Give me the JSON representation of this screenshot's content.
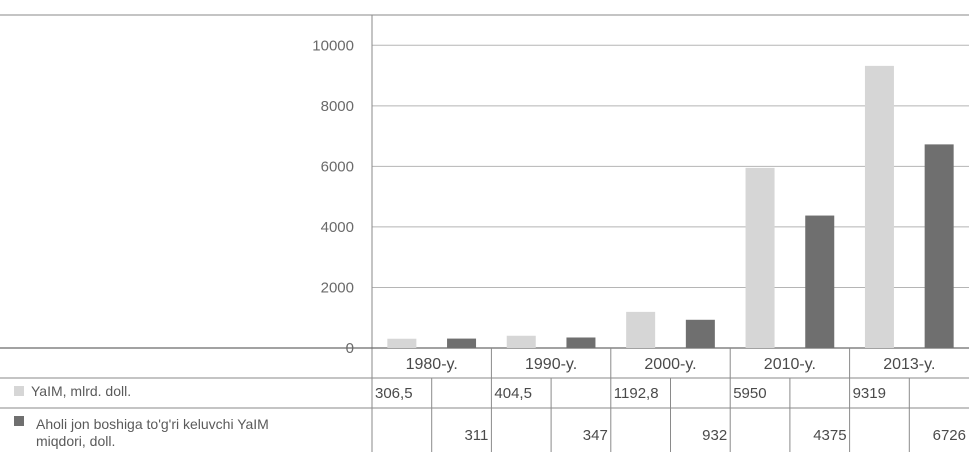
{
  "chart_data": {
    "type": "bar",
    "categories": [
      "1980-y.",
      "1990-y.",
      "2000-y.",
      "2010-y.",
      "2013-y."
    ],
    "series": [
      {
        "name": "YaIM, mlrd. doll.",
        "values": [
          306.5,
          404.5,
          1192.8,
          5950,
          9319
        ],
        "labels": [
          "306,5",
          "404,5",
          "1192,8",
          "5950",
          "9319"
        ],
        "color": "#d6d6d6"
      },
      {
        "name": "Aholi jon boshiga to'g'ri keluvchi YaIM miqdori, doll.",
        "name_lines": [
          "Aholi jon boshiga to'g'ri keluvchi YaIM",
          "miqdori, doll."
        ],
        "values": [
          311,
          347,
          932,
          4375,
          6726
        ],
        "labels": [
          "311",
          "347",
          "932",
          "4375",
          "6726"
        ],
        "color": "#6f6f6f"
      }
    ],
    "y_ticks": [
      0,
      2000,
      4000,
      6000,
      8000,
      10000
    ],
    "y_tick_labels": [
      "0",
      "2000",
      "4000",
      "6000",
      "8000",
      "10000"
    ],
    "ylim": [
      0,
      11000
    ],
    "grid": true,
    "legend": "data-table-bottom"
  }
}
